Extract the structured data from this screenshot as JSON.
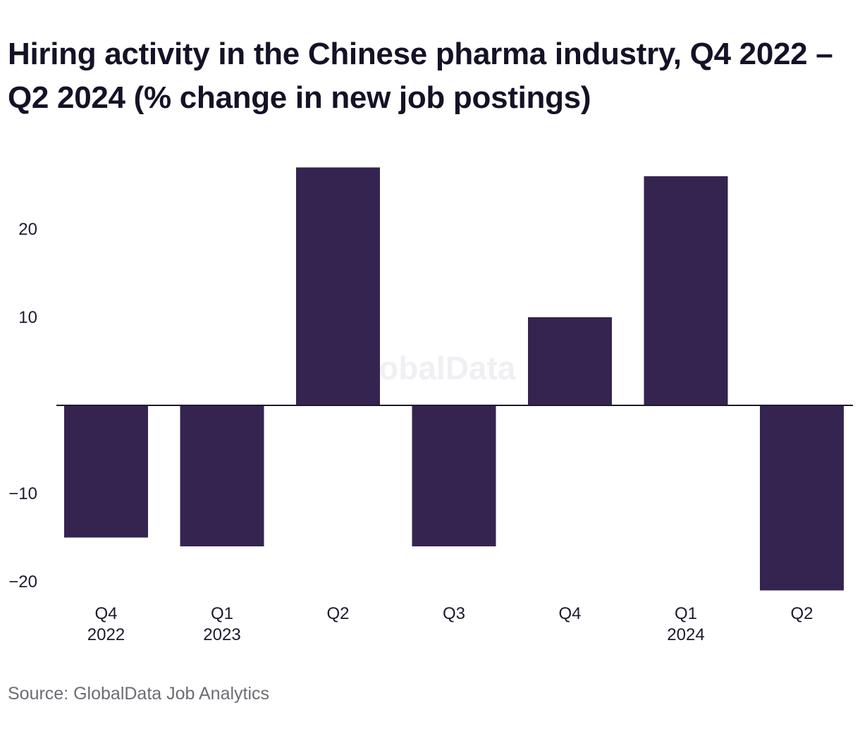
{
  "chart_data": {
    "type": "bar",
    "title": "Hiring activity in the Chinese pharma industry, Q4 2022 – Q2 2024 (% change in new job postings)",
    "categories": [
      {
        "quarter": "Q4",
        "year": "2022"
      },
      {
        "quarter": "Q1",
        "year": "2023"
      },
      {
        "quarter": "Q2",
        "year": ""
      },
      {
        "quarter": "Q3",
        "year": ""
      },
      {
        "quarter": "Q4",
        "year": ""
      },
      {
        "quarter": "Q1",
        "year": "2024"
      },
      {
        "quarter": "Q2",
        "year": ""
      }
    ],
    "values": [
      -15,
      -16,
      27,
      -16,
      10,
      26,
      -21
    ],
    "yticks": [
      -20,
      -10,
      10,
      20
    ],
    "ytick_labels": [
      "−20",
      "−10",
      "10",
      "20"
    ],
    "ylim": [
      -22,
      29
    ],
    "xlabel": "",
    "ylabel": "",
    "grid": false,
    "legend": "none",
    "bar_color": "#35244f",
    "axis_color": "#1c1a2e"
  },
  "watermark": "GlobalData",
  "source": "Source: GlobalData Job Analytics"
}
